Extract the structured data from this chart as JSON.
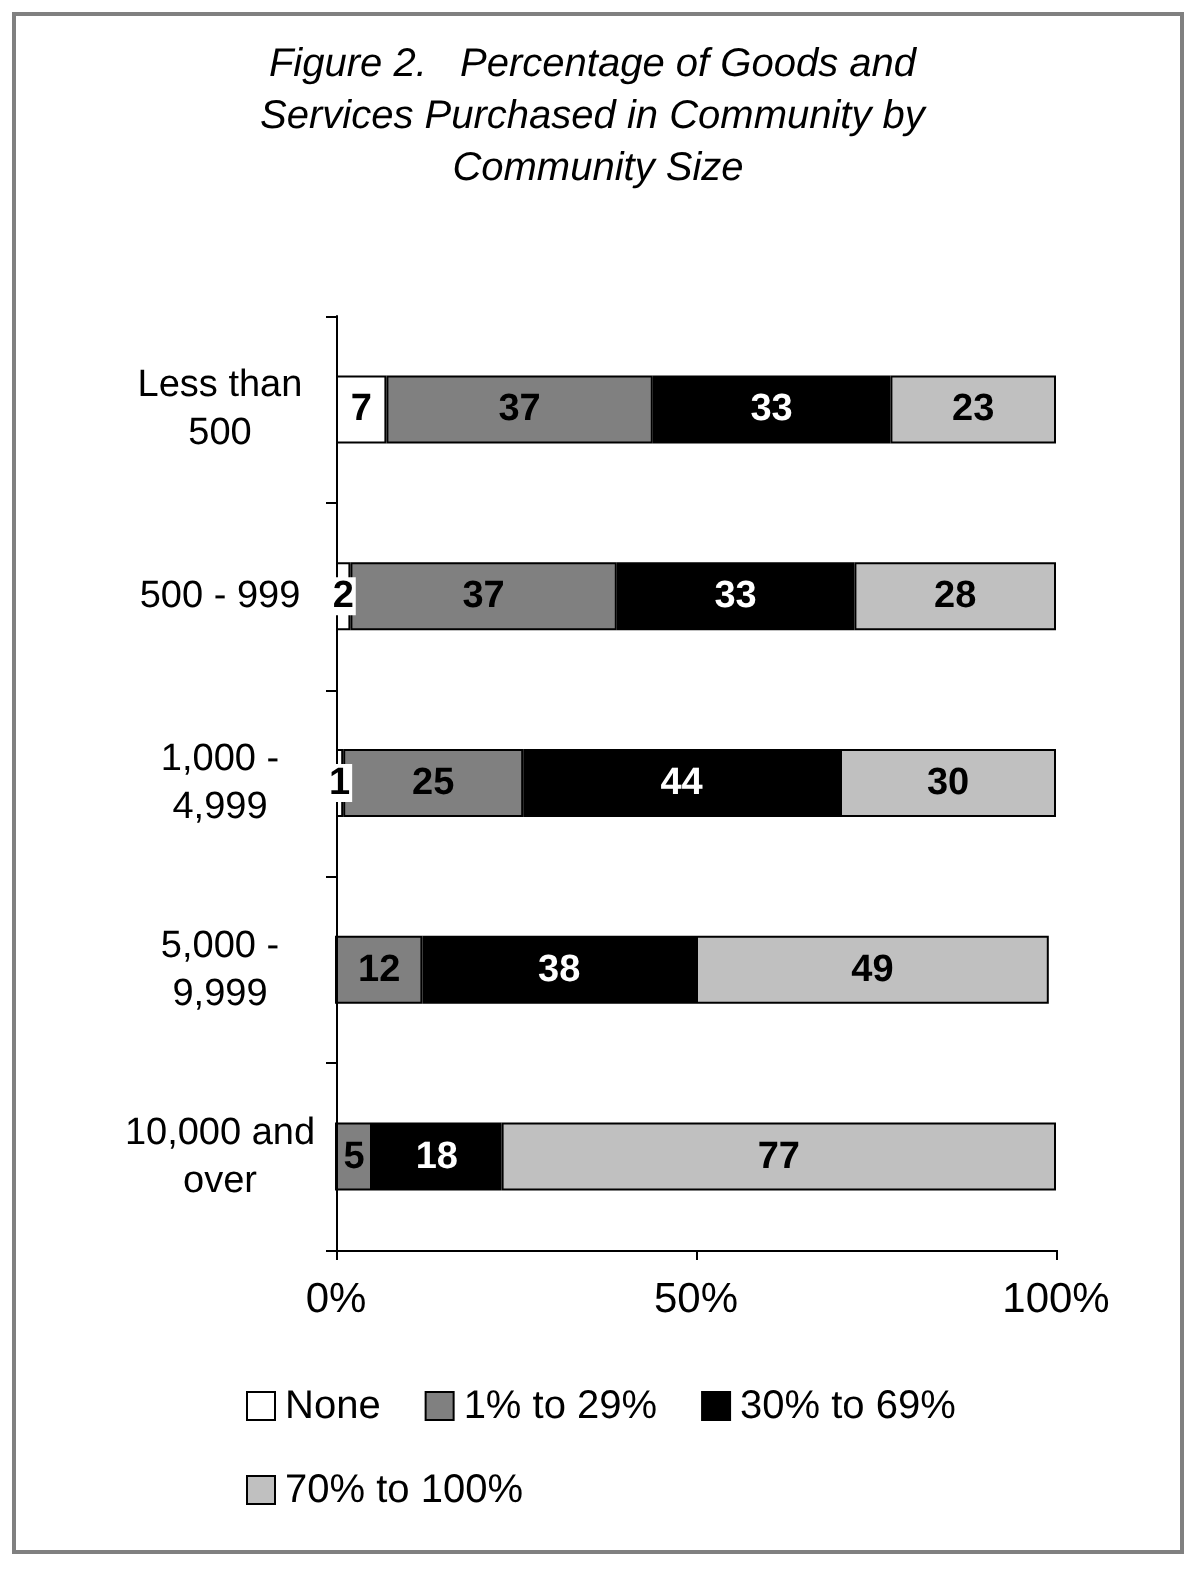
{
  "chart_data": {
    "type": "bar",
    "orientation": "horizontal",
    "stacked": true,
    "title": "Figure 2.   Percentage of Goods and Services Purchased in Community by Community Size",
    "categories": [
      "Less than 500",
      "500 - 999",
      "1,000 - 4,999",
      "5,000 - 9,999",
      "10,000 and over"
    ],
    "series": [
      {
        "name": "None",
        "color": "#ffffff",
        "values": [
          7,
          2,
          1,
          0,
          0
        ],
        "value_labels": [
          "7",
          "2",
          "1",
          null,
          null
        ]
      },
      {
        "name": "1% to 29%",
        "color": "#808080",
        "values": [
          37,
          37,
          25,
          12,
          5
        ],
        "value_labels": [
          "37",
          "37",
          "25",
          "12",
          "5"
        ]
      },
      {
        "name": "30% to 69%",
        "color": "#000000",
        "values": [
          33,
          33,
          44,
          38,
          18
        ],
        "value_labels": [
          "33",
          "33",
          "44",
          "38",
          "18"
        ]
      },
      {
        "name": "70% to 100%",
        "color": "#c0c0c0",
        "values": [
          23,
          28,
          30,
          49,
          77
        ],
        "value_labels": [
          "23",
          "28",
          "30",
          "49",
          "77"
        ]
      }
    ],
    "xlim": [
      0,
      100
    ],
    "xticks": [
      {
        "value": 0,
        "label": "0%"
      },
      {
        "value": 50,
        "label": "50%"
      },
      {
        "value": 100,
        "label": "100%"
      }
    ],
    "legend": "bottom"
  }
}
